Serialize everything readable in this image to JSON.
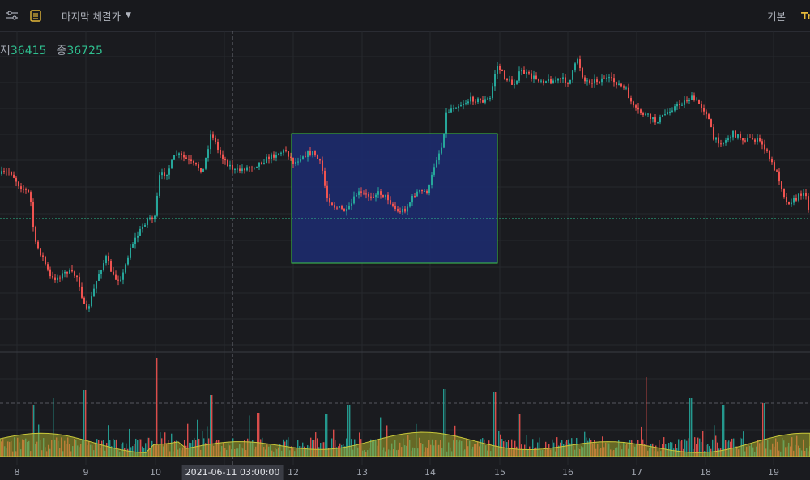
{
  "toolbar": {
    "settings_icon": "sliders-icon",
    "list_icon": "document-list-icon",
    "price_type": "마지막 체결가",
    "view_basic": "기본",
    "view_tradingview": "Tr"
  },
  "ohlc": {
    "low_label": "저",
    "low_value": "36415",
    "close_label": "종",
    "close_value": "36725"
  },
  "x_axis": {
    "labels": [
      "8",
      "9",
      "10",
      "12",
      "13",
      "14",
      "15",
      "16",
      "17",
      "18",
      "19"
    ],
    "crosshair_label": "2021-06-11 03:00:00"
  },
  "colors": {
    "up": "#26a69a",
    "down": "#ef5350",
    "background": "#1a1b1f",
    "selection_fill": "#1c2a6b",
    "selection_border": "#3ec94f",
    "volume_ma": "#a6a82a"
  },
  "chart_data": {
    "type": "candlestick",
    "close_series": [
      [
        0,
        215
      ],
      [
        12,
        212
      ],
      [
        22,
        228
      ],
      [
        36,
        240
      ],
      [
        42,
        300
      ],
      [
        52,
        318
      ],
      [
        62,
        345
      ],
      [
        72,
        342
      ],
      [
        82,
        335
      ],
      [
        95,
        342
      ],
      [
        105,
        388
      ],
      [
        112,
        368
      ],
      [
        120,
        340
      ],
      [
        130,
        318
      ],
      [
        140,
        345
      ],
      [
        150,
        342
      ],
      [
        160,
        305
      ],
      [
        172,
        285
      ],
      [
        182,
        268
      ],
      [
        190,
        270
      ],
      [
        196,
        218
      ],
      [
        206,
        212
      ],
      [
        216,
        190
      ],
      [
        226,
        195
      ],
      [
        240,
        205
      ],
      [
        250,
        210
      ],
      [
        260,
        162
      ],
      [
        268,
        185
      ],
      [
        278,
        200
      ],
      [
        290,
        212
      ],
      [
        300,
        208
      ],
      [
        312,
        205
      ],
      [
        325,
        198
      ],
      [
        340,
        190
      ],
      [
        352,
        186
      ],
      [
        362,
        202
      ],
      [
        372,
        192
      ],
      [
        386,
        188
      ],
      [
        396,
        205
      ],
      [
        402,
        242
      ],
      [
        412,
        255
      ],
      [
        428,
        262
      ],
      [
        440,
        238
      ],
      [
        452,
        242
      ],
      [
        468,
        238
      ],
      [
        478,
        245
      ],
      [
        490,
        262
      ],
      [
        500,
        258
      ],
      [
        512,
        238
      ],
      [
        528,
        236
      ],
      [
        536,
        200
      ],
      [
        544,
        182
      ],
      [
        550,
        140
      ],
      [
        558,
        132
      ],
      [
        570,
        128
      ],
      [
        582,
        122
      ],
      [
        594,
        125
      ],
      [
        604,
        122
      ],
      [
        612,
        80
      ],
      [
        622,
        95
      ],
      [
        632,
        105
      ],
      [
        642,
        88
      ],
      [
        655,
        95
      ],
      [
        665,
        98
      ],
      [
        680,
        100
      ],
      [
        692,
        98
      ],
      [
        702,
        102
      ],
      [
        712,
        72
      ],
      [
        720,
        100
      ],
      [
        735,
        100
      ],
      [
        745,
        96
      ],
      [
        760,
        102
      ],
      [
        772,
        112
      ],
      [
        782,
        135
      ],
      [
        796,
        142
      ],
      [
        808,
        150
      ],
      [
        816,
        145
      ],
      [
        826,
        135
      ],
      [
        840,
        128
      ],
      [
        852,
        120
      ],
      [
        862,
        128
      ],
      [
        872,
        140
      ],
      [
        880,
        172
      ],
      [
        892,
        176
      ],
      [
        904,
        165
      ],
      [
        918,
        172
      ],
      [
        932,
        172
      ],
      [
        942,
        180
      ],
      [
        950,
        198
      ],
      [
        960,
        218
      ],
      [
        970,
        250
      ],
      [
        982,
        246
      ],
      [
        992,
        234
      ],
      [
        998,
        262
      ]
    ],
    "selection_range": {
      "start_x_label": "12",
      "end_x_label": "15"
    },
    "series": [
      {
        "name": "Candlesticks"
      },
      {
        "name": "Volume"
      }
    ]
  }
}
